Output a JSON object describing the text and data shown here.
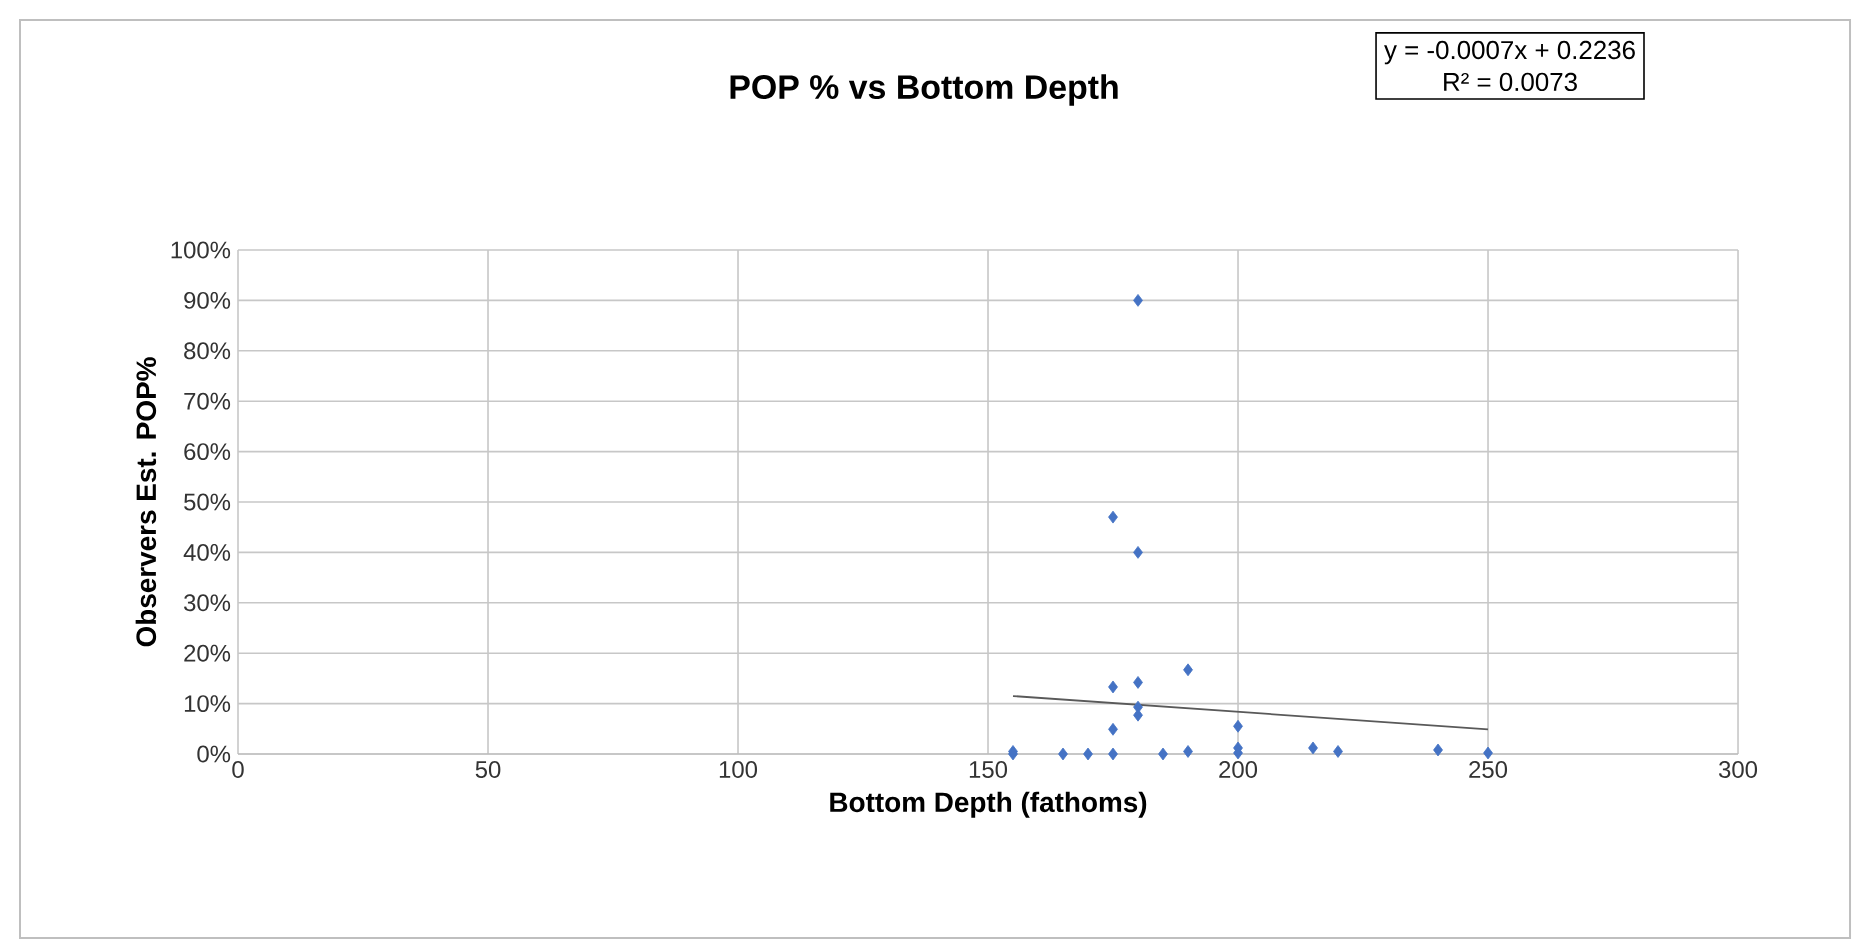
{
  "chart_data": {
    "type": "scatter",
    "title": "POP % vs Bottom Depth",
    "xlabel": "Bottom Depth (fathoms)",
    "ylabel": "Observers Est. POP%",
    "annotations": [
      "y = -0.0007x + 0.2236",
      "R² = 0.0073"
    ],
    "xlim": [
      0,
      300
    ],
    "xticks": [
      0,
      50,
      100,
      150,
      200,
      250,
      300
    ],
    "ylim": [
      0,
      1
    ],
    "yticks": [
      {
        "value": 0,
        "label": "0%"
      },
      {
        "value": 0.1,
        "label": "10%"
      },
      {
        "value": 0.2,
        "label": "20%"
      },
      {
        "value": 0.3,
        "label": "30%"
      },
      {
        "value": 0.4,
        "label": "40%"
      },
      {
        "value": 0.5,
        "label": "50%"
      },
      {
        "value": 0.6,
        "label": "60%"
      },
      {
        "value": 0.7,
        "label": "70%"
      },
      {
        "value": 0.8,
        "label": "80%"
      },
      {
        "value": 0.9,
        "label": "90%"
      },
      {
        "value": 1,
        "label": "100%"
      }
    ],
    "grid": true,
    "marker": "diamond",
    "series": [
      {
        "color": "#4472c4",
        "x": [
          155,
          155,
          165,
          170,
          175,
          175,
          175,
          175,
          180,
          180,
          180,
          180,
          180,
          185,
          190,
          190,
          200,
          200,
          200,
          215,
          220,
          240,
          250
        ],
        "values": [
          0,
          0.005,
          0,
          0,
          0,
          0.049,
          0.133,
          0.47,
          0.9,
          0.4,
          0.142,
          0.093,
          0.077,
          0,
          0.005,
          0.167,
          0.055,
          0.012,
          0.002,
          0.012,
          0.005,
          0.008,
          0.002
        ]
      },
      {
        "type": "line",
        "color": "#595959",
        "marker": "none",
        "x": [
          155,
          250
        ],
        "values": [
          0.115,
          0.049
        ]
      }
    ]
  }
}
